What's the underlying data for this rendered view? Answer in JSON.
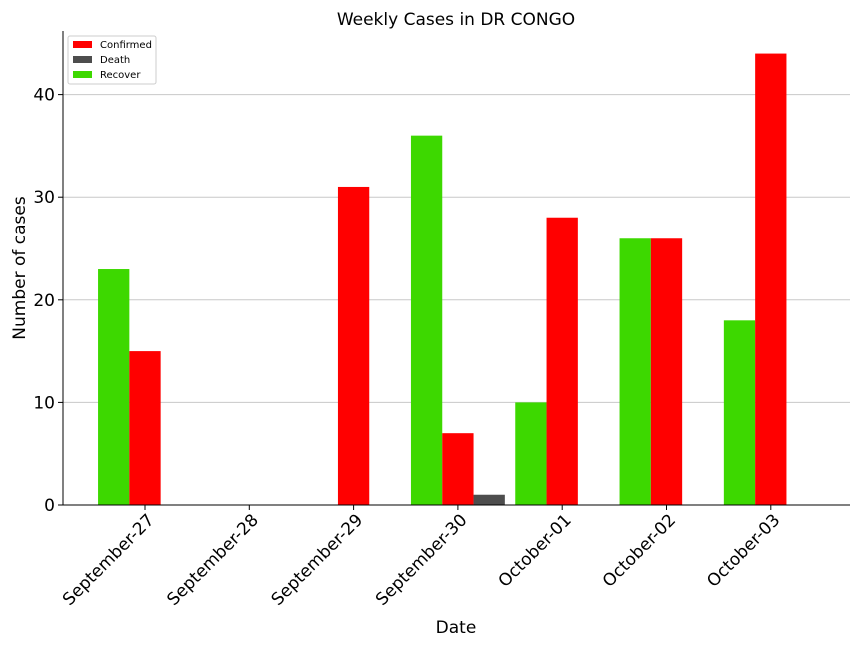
{
  "chart_data": {
    "type": "bar",
    "title": "Weekly Cases in DR CONGO",
    "xlabel": "Date",
    "ylabel": "Number of cases",
    "categories": [
      "September-27",
      "September-28",
      "September-29",
      "September-30",
      "October-01",
      "October-02",
      "October-03"
    ],
    "series": [
      {
        "name": "Recover",
        "color": "#3dd800",
        "values": [
          23,
          0,
          0,
          36,
          10,
          26,
          18
        ]
      },
      {
        "name": "Confirmed",
        "color": "#ff0000",
        "values": [
          15,
          0,
          31,
          7,
          28,
          26,
          44
        ]
      },
      {
        "name": "Death",
        "color": "#4d4d4d",
        "values": [
          0,
          0,
          0,
          1,
          0,
          0,
          0
        ]
      }
    ],
    "legend_order": [
      "Confirmed",
      "Death",
      "Recover"
    ],
    "legend_position": "top-left",
    "yticks": [
      0,
      10,
      20,
      30,
      40
    ],
    "ylim": [
      0,
      46.2
    ],
    "grid": "horizontal"
  }
}
